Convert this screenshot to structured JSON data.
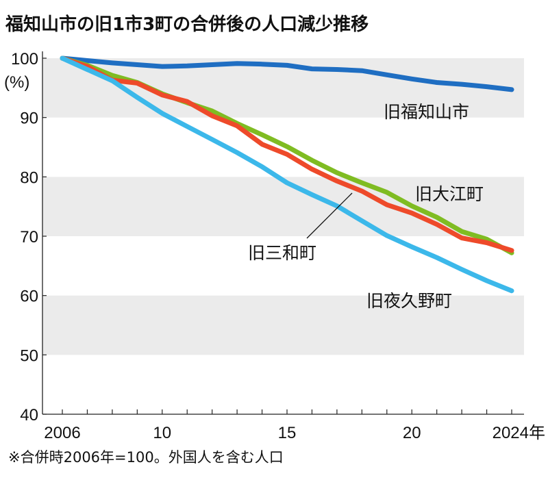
{
  "chart_data": {
    "type": "line",
    "title": "福知山市の旧1市3町の合併後の人口減少推移",
    "ylabel": "(%)",
    "xlabel": "",
    "x": [
      2006,
      2007,
      2008,
      2009,
      2010,
      2011,
      2012,
      2013,
      2014,
      2015,
      2016,
      2017,
      2018,
      2019,
      2020,
      2021,
      2022,
      2023,
      2024
    ],
    "xticks": [
      {
        "value": 2006,
        "label": "2006"
      },
      {
        "value": 2010,
        "label": "10"
      },
      {
        "value": 2015,
        "label": "15"
      },
      {
        "value": 2020,
        "label": "20"
      },
      {
        "value": 2024,
        "label": "2024年"
      }
    ],
    "yticks": [
      100,
      90,
      80,
      70,
      60,
      50,
      40
    ],
    "ylim": [
      40,
      100
    ],
    "xlim": [
      2006,
      2024
    ],
    "shaded_bands": [
      [
        90,
        100
      ],
      [
        70,
        80
      ],
      [
        50,
        60
      ]
    ],
    "grid": false,
    "series": [
      {
        "name": "旧福知山市",
        "color": "#1f6ec2",
        "values": [
          100,
          99.6,
          99.2,
          98.9,
          98.6,
          98.7,
          98.9,
          99.1,
          99.0,
          98.8,
          98.2,
          98.1,
          97.9,
          97.2,
          96.5,
          95.9,
          95.6,
          95.2,
          94.7
        ]
      },
      {
        "name": "旧大江町",
        "color": "#7fbc22",
        "values": [
          100,
          98.8,
          97.1,
          95.9,
          94.0,
          92.5,
          91.1,
          89.0,
          87.1,
          85.1,
          82.8,
          80.7,
          79.0,
          77.4,
          75.1,
          73.2,
          70.8,
          69.5,
          67.2
        ]
      },
      {
        "name": "旧三和町",
        "color": "#ee4a2a",
        "values": [
          100,
          98.6,
          96.3,
          95.8,
          93.8,
          92.7,
          90.3,
          88.6,
          85.5,
          83.8,
          81.3,
          79.3,
          77.6,
          75.3,
          73.9,
          72.0,
          69.7,
          68.9,
          67.6
        ]
      },
      {
        "name": "旧夜久野町",
        "color": "#3cb8ea",
        "values": [
          100,
          98.1,
          96.2,
          93.4,
          90.7,
          88.5,
          86.3,
          84.1,
          81.7,
          79.0,
          77.0,
          75.1,
          72.6,
          70.1,
          68.2,
          66.4,
          64.4,
          62.5,
          60.8
        ]
      }
    ],
    "note": "※合併時2006年=100。外国人を含む人口"
  }
}
